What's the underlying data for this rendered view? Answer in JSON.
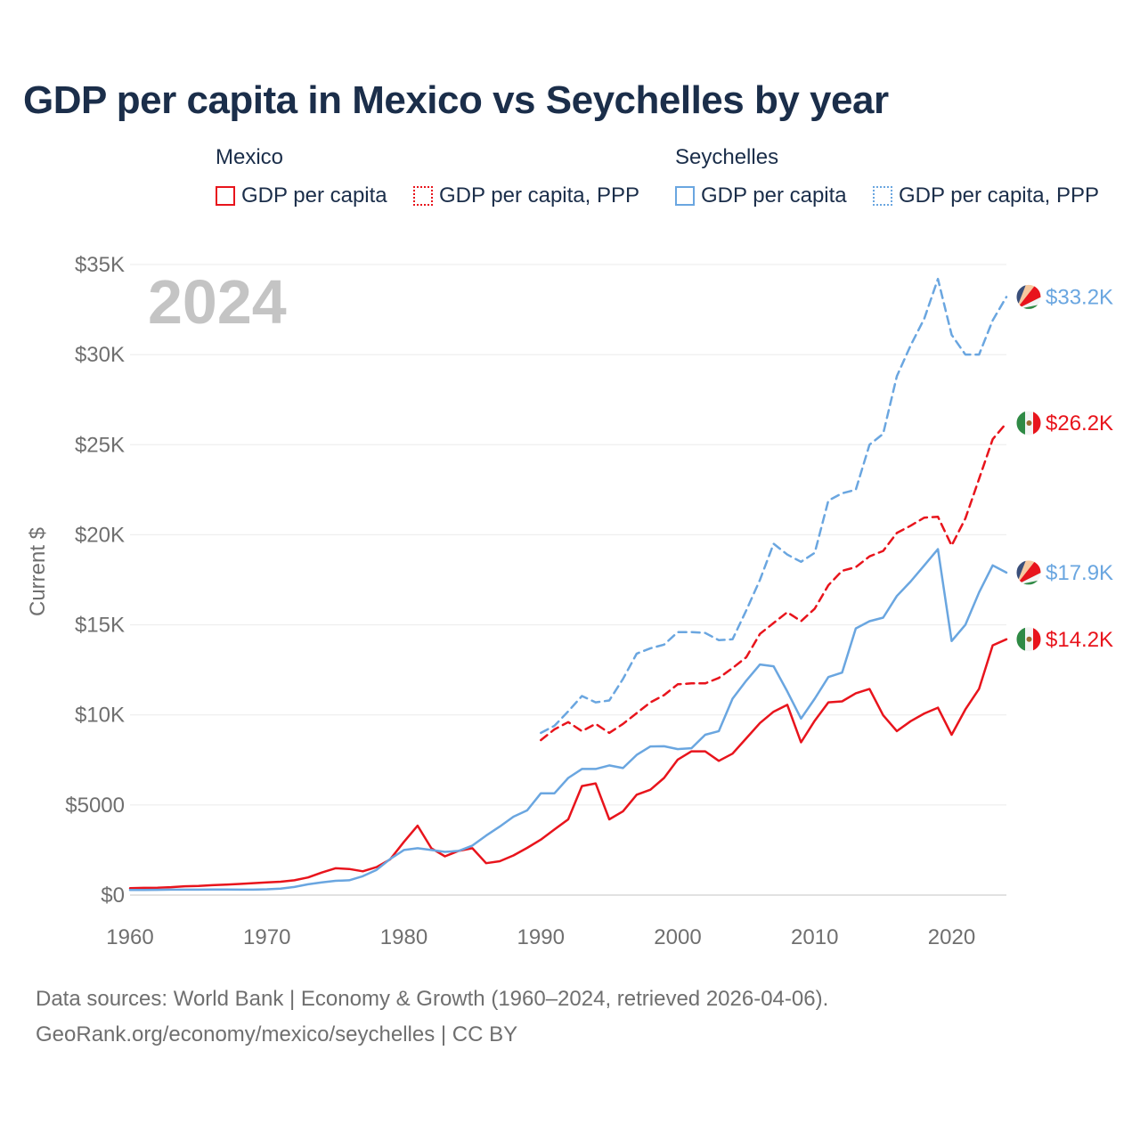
{
  "chart_data": {
    "type": "line",
    "title": "GDP per capita in Mexico vs Seychelles by year",
    "year_watermark": "2024",
    "ylabel": "Current $",
    "xlabel": "",
    "xlim": [
      1960,
      2024
    ],
    "ylim": [
      0,
      35000
    ],
    "x_ticks": [
      1960,
      1970,
      1980,
      1990,
      2000,
      2010,
      2020
    ],
    "y_ticks": [
      {
        "value": 0,
        "label": "$0"
      },
      {
        "value": 5000,
        "label": "$5000"
      },
      {
        "value": 10000,
        "label": "$10K"
      },
      {
        "value": 15000,
        "label": "$15K"
      },
      {
        "value": 20000,
        "label": "$20K"
      },
      {
        "value": 25000,
        "label": "$25K"
      },
      {
        "value": 30000,
        "label": "$30K"
      },
      {
        "value": 35000,
        "label": "$35K"
      }
    ],
    "legend": {
      "groups": [
        {
          "country": "Mexico",
          "items": [
            "GDP per capita",
            "GDP per capita, PPP"
          ]
        },
        {
          "country": "Seychelles",
          "items": [
            "GDP per capita",
            "GDP per capita, PPP"
          ]
        }
      ]
    },
    "series": [
      {
        "name": "Mexico GDP per capita",
        "country": "Mexico",
        "style": "solid",
        "color": "#e8141c",
        "start_year": 1960,
        "values": [
          380,
          400,
          410,
          440,
          490,
          510,
          550,
          580,
          620,
          660,
          700,
          740,
          820,
          980,
          1250,
          1490,
          1450,
          1320,
          1550,
          1980,
          2950,
          3850,
          2600,
          2150,
          2450,
          2600,
          1770,
          1880,
          2200,
          2620,
          3080,
          3650,
          4200,
          6050,
          6200,
          4200,
          4650,
          5570,
          5850,
          6500,
          7520,
          7980,
          7980,
          7450,
          7850,
          8700,
          9550,
          10180,
          10560,
          8480,
          9680,
          10700,
          10750,
          11200,
          11440,
          9980,
          9100,
          9650,
          10080,
          10400,
          8900,
          10300,
          11450,
          13860,
          14200
        ],
        "end_label": "$14.2K"
      },
      {
        "name": "Mexico GDP per capita, PPP",
        "country": "Mexico",
        "style": "dashed",
        "color": "#e8141c",
        "start_year": 1990,
        "values": [
          8600,
          9200,
          9600,
          9100,
          9500,
          9000,
          9500,
          10100,
          10700,
          11100,
          11700,
          11750,
          11750,
          12050,
          12600,
          13200,
          14500,
          15100,
          15700,
          15200,
          15900,
          17200,
          18000,
          18200,
          18800,
          19100,
          20100,
          20500,
          20950,
          21000,
          19400,
          20900,
          23100,
          25300,
          26200
        ],
        "end_label": "$26.2K"
      },
      {
        "name": "Seychelles GDP per capita",
        "country": "Seychelles",
        "style": "solid",
        "color": "#6aa6e0",
        "start_year": 1960,
        "values": [
          280,
          280,
          290,
          300,
          300,
          300,
          310,
          310,
          300,
          300,
          320,
          360,
          450,
          600,
          700,
          790,
          820,
          1050,
          1400,
          2000,
          2500,
          2600,
          2500,
          2400,
          2450,
          2750,
          3300,
          3800,
          4350,
          4700,
          5650,
          5650,
          6500,
          7000,
          7000,
          7200,
          7050,
          7780,
          8250,
          8260,
          8100,
          8150,
          8900,
          9100,
          10900,
          11900,
          12800,
          12700,
          11300,
          9800,
          10900,
          12100,
          12350,
          14800,
          15200,
          15400,
          16600,
          17400,
          18300,
          19200,
          14100,
          15000,
          16800,
          18300,
          17900
        ],
        "end_label": "$17.9K"
      },
      {
        "name": "Seychelles GDP per capita, PPP",
        "country": "Seychelles",
        "style": "dashed",
        "color": "#6aa6e0",
        "start_year": 1990,
        "values": [
          9000,
          9400,
          10200,
          11050,
          10700,
          10800,
          12000,
          13400,
          13700,
          13900,
          14600,
          14600,
          14550,
          14150,
          14200,
          15800,
          17500,
          19500,
          18900,
          18500,
          19000,
          21900,
          22300,
          22500,
          25000,
          25600,
          28800,
          30500,
          32000,
          34200,
          31100,
          30000,
          30000,
          31900,
          33200
        ],
        "end_label": "$33.2K"
      }
    ]
  },
  "sources": {
    "line1": "Data sources: World Bank | Economy & Growth (1960–2024, retrieved 2026-04-06).",
    "line2": "GeoRank.org/economy/mexico/seychelles | CC BY"
  }
}
